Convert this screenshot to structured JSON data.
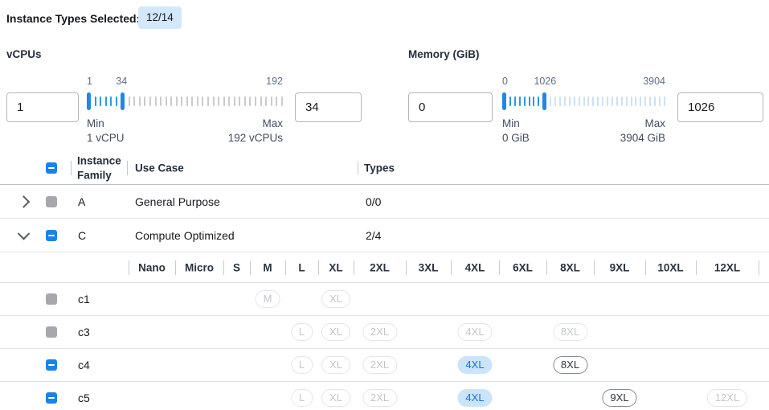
{
  "header": {
    "label": "Instance Types Selected:",
    "badge": "12/14"
  },
  "filters": {
    "vcpus": {
      "title": "vCPUs",
      "from_value": "1",
      "to_value": "34",
      "scale": {
        "low": "1",
        "mid": "34",
        "high": "192"
      },
      "min_label": "Min",
      "min_detail": "1 vCPU",
      "max_label": "Max",
      "max_detail": "192 vCPUs",
      "ticks": {
        "active": 5,
        "inactive": 30
      },
      "inactive_color": "#c9cbcf"
    },
    "memory": {
      "title": "Memory (GiB)",
      "from_value": "0",
      "to_value": "1026",
      "scale": {
        "low": "0",
        "mid": "1026",
        "high": "3904"
      },
      "min_label": "Min",
      "min_detail": "0 GiB",
      "max_label": "Max",
      "max_detail": "3904 GiB",
      "ticks": {
        "active": 7,
        "inactive": 25
      },
      "inactive_color": "#cfe1f1"
    }
  },
  "table": {
    "columns": {
      "family": "Instance Family",
      "use_case": "Use Case",
      "types": "Types"
    },
    "header_checkbox": "indeterminate",
    "families": [
      {
        "name": "A",
        "use_case": "General Purpose",
        "types": "0/0",
        "expanded": false,
        "checkbox": "disabled"
      },
      {
        "name": "C",
        "use_case": "Compute Optimized",
        "types": "2/4",
        "expanded": true,
        "checkbox": "indeterminate"
      }
    ],
    "sizes": [
      "Nano",
      "Micro",
      "S",
      "M",
      "L",
      "XL",
      "2XL",
      "3XL",
      "4XL",
      "6XL",
      "8XL",
      "9XL",
      "10XL",
      "12XL"
    ],
    "instance_rows": [
      {
        "name": "c1",
        "checkbox": "disabled",
        "chips": {
          "M": "disabled",
          "XL": "disabled"
        }
      },
      {
        "name": "c3",
        "checkbox": "disabled",
        "chips": {
          "L": "disabled",
          "XL": "disabled",
          "2XL": "disabled",
          "4XL": "disabled",
          "8XL": "disabled"
        }
      },
      {
        "name": "c4",
        "checkbox": "indeterminate",
        "chips": {
          "L": "disabled",
          "XL": "disabled",
          "2XL": "disabled",
          "4XL": "selected",
          "8XL": "available"
        }
      },
      {
        "name": "c5",
        "checkbox": "indeterminate",
        "chips": {
          "L": "disabled",
          "XL": "disabled",
          "2XL": "disabled",
          "4XL": "selected",
          "9XL": "available",
          "12XL": "disabled"
        }
      }
    ]
  },
  "colors": {
    "accent_blue": "#1a82e8",
    "slider_active_tick": "#2f97e8",
    "badge_bg": "#d3e8fb",
    "chip_selected_bg": "#cce4f9",
    "chip_selected_text": "#1173d4",
    "chip_disabled_text": "#c2c6cb",
    "disabled_checkbox": "#a6a8ab"
  }
}
